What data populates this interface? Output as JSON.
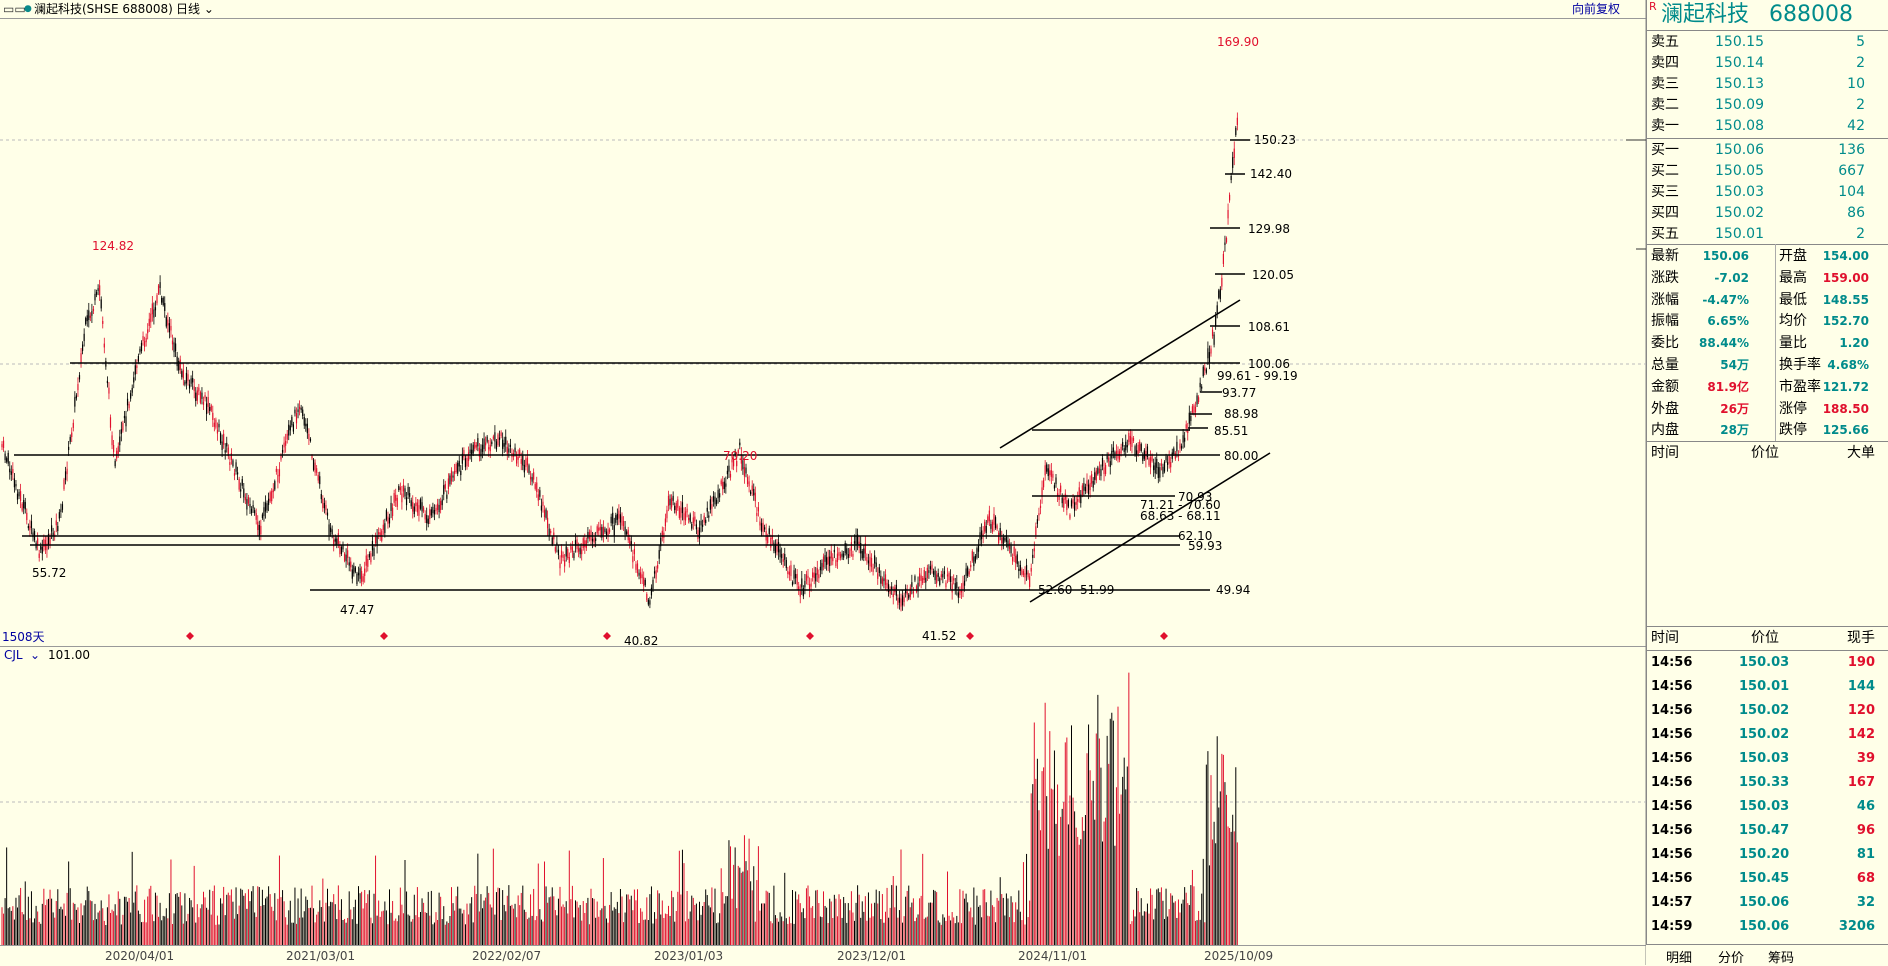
{
  "toolbar": {
    "menu_icon": "window-icon",
    "stock": "澜起科技(SHSE 688008)",
    "period": "日线",
    "restore": "向前复权"
  },
  "chart": {
    "days": "1508天",
    "volume_label": "CJL",
    "volume_value": "101.00",
    "x_labels": [
      "2020/04/01",
      "2021/03/01",
      "2022/02/07",
      "2023/01/03",
      "2023/12/01",
      "2024/11/01",
      "2025/10/09"
    ],
    "high_labels": [
      "169.90",
      "124.82",
      "70.20"
    ],
    "low_labels": [
      "55.72",
      "47.47",
      "40.82",
      "41.52"
    ],
    "level_labels": [
      "150.23",
      "142.40",
      "129.98",
      "120.05",
      "108.61",
      "100.06",
      "99.61 - 99.19",
      "93.77",
      "88.98",
      "85.51",
      "80.00",
      "70.93",
      "71.21 - 70.60",
      "68.63 - 68.11",
      "62.10",
      "59.93",
      "52.60",
      "51.99",
      "49.94"
    ]
  },
  "quote": {
    "flag": "R",
    "name": "澜起科技",
    "code": "688008",
    "asks": [
      {
        "label": "卖五",
        "price": "150.15",
        "vol": "5"
      },
      {
        "label": "卖四",
        "price": "150.14",
        "vol": "2"
      },
      {
        "label": "卖三",
        "price": "150.13",
        "vol": "10"
      },
      {
        "label": "卖二",
        "price": "150.09",
        "vol": "2"
      },
      {
        "label": "卖一",
        "price": "150.08",
        "vol": "42"
      }
    ],
    "bids": [
      {
        "label": "买一",
        "price": "150.06",
        "vol": "136"
      },
      {
        "label": "买二",
        "price": "150.05",
        "vol": "667"
      },
      {
        "label": "买三",
        "price": "150.03",
        "vol": "104"
      },
      {
        "label": "买四",
        "price": "150.02",
        "vol": "86"
      },
      {
        "label": "买五",
        "price": "150.01",
        "vol": "2"
      }
    ],
    "stats": [
      {
        "l1": "最新",
        "v1": "150.06",
        "c1": "teal",
        "l2": "开盘",
        "v2": "154.00",
        "c2": "teal"
      },
      {
        "l1": "涨跌",
        "v1": "-7.02",
        "c1": "teal",
        "l2": "最高",
        "v2": "159.00",
        "c2": "red"
      },
      {
        "l1": "涨幅",
        "v1": "-4.47%",
        "c1": "teal",
        "l2": "最低",
        "v2": "148.55",
        "c2": "teal"
      },
      {
        "l1": "振幅",
        "v1": "6.65%",
        "c1": "teal",
        "l2": "均价",
        "v2": "152.70",
        "c2": "teal"
      },
      {
        "l1": "委比",
        "v1": "88.44%",
        "c1": "teal",
        "l2": "量比",
        "v2": "1.20",
        "c2": "teal"
      },
      {
        "l1": "总量",
        "v1": "54万",
        "c1": "teal",
        "l2": "换手率",
        "v2": "4.68%",
        "c2": "teal"
      },
      {
        "l1": "金额",
        "v1": "81.9亿",
        "c1": "red",
        "l2": "市盈率",
        "v2": "121.72",
        "c2": "teal"
      },
      {
        "l1": "外盘",
        "v1": "26万",
        "c1": "red",
        "l2": "涨停",
        "v2": "188.50",
        "c2": "red"
      },
      {
        "l1": "内盘",
        "v1": "28万",
        "c1": "teal",
        "l2": "跌停",
        "v2": "125.66",
        "c2": "teal"
      }
    ],
    "big_header": {
      "time": "时间",
      "price": "价位",
      "vol": "大单"
    },
    "tick_header": {
      "time": "时间",
      "price": "价位",
      "vol": "现手"
    },
    "ticks": [
      {
        "time": "14:56",
        "price": "150.03",
        "vol": "190",
        "c": "red"
      },
      {
        "time": "14:56",
        "price": "150.01",
        "vol": "144",
        "c": "teal"
      },
      {
        "time": "14:56",
        "price": "150.02",
        "vol": "120",
        "c": "red"
      },
      {
        "time": "14:56",
        "price": "150.02",
        "vol": "142",
        "c": "red"
      },
      {
        "time": "14:56",
        "price": "150.03",
        "vol": "39",
        "c": "red"
      },
      {
        "time": "14:56",
        "price": "150.33",
        "vol": "167",
        "c": "red"
      },
      {
        "time": "14:56",
        "price": "150.03",
        "vol": "46",
        "c": "teal"
      },
      {
        "time": "14:56",
        "price": "150.47",
        "vol": "96",
        "c": "red"
      },
      {
        "time": "14:56",
        "price": "150.20",
        "vol": "81",
        "c": "teal"
      },
      {
        "time": "14:56",
        "price": "150.45",
        "vol": "68",
        "c": "red"
      },
      {
        "time": "14:57",
        "price": "150.06",
        "vol": "32",
        "c": "teal"
      },
      {
        "time": "14:59",
        "price": "150.06",
        "vol": "3206",
        "c": "teal"
      }
    ]
  },
  "tabs": [
    "明细",
    "分价",
    "筹码"
  ]
}
